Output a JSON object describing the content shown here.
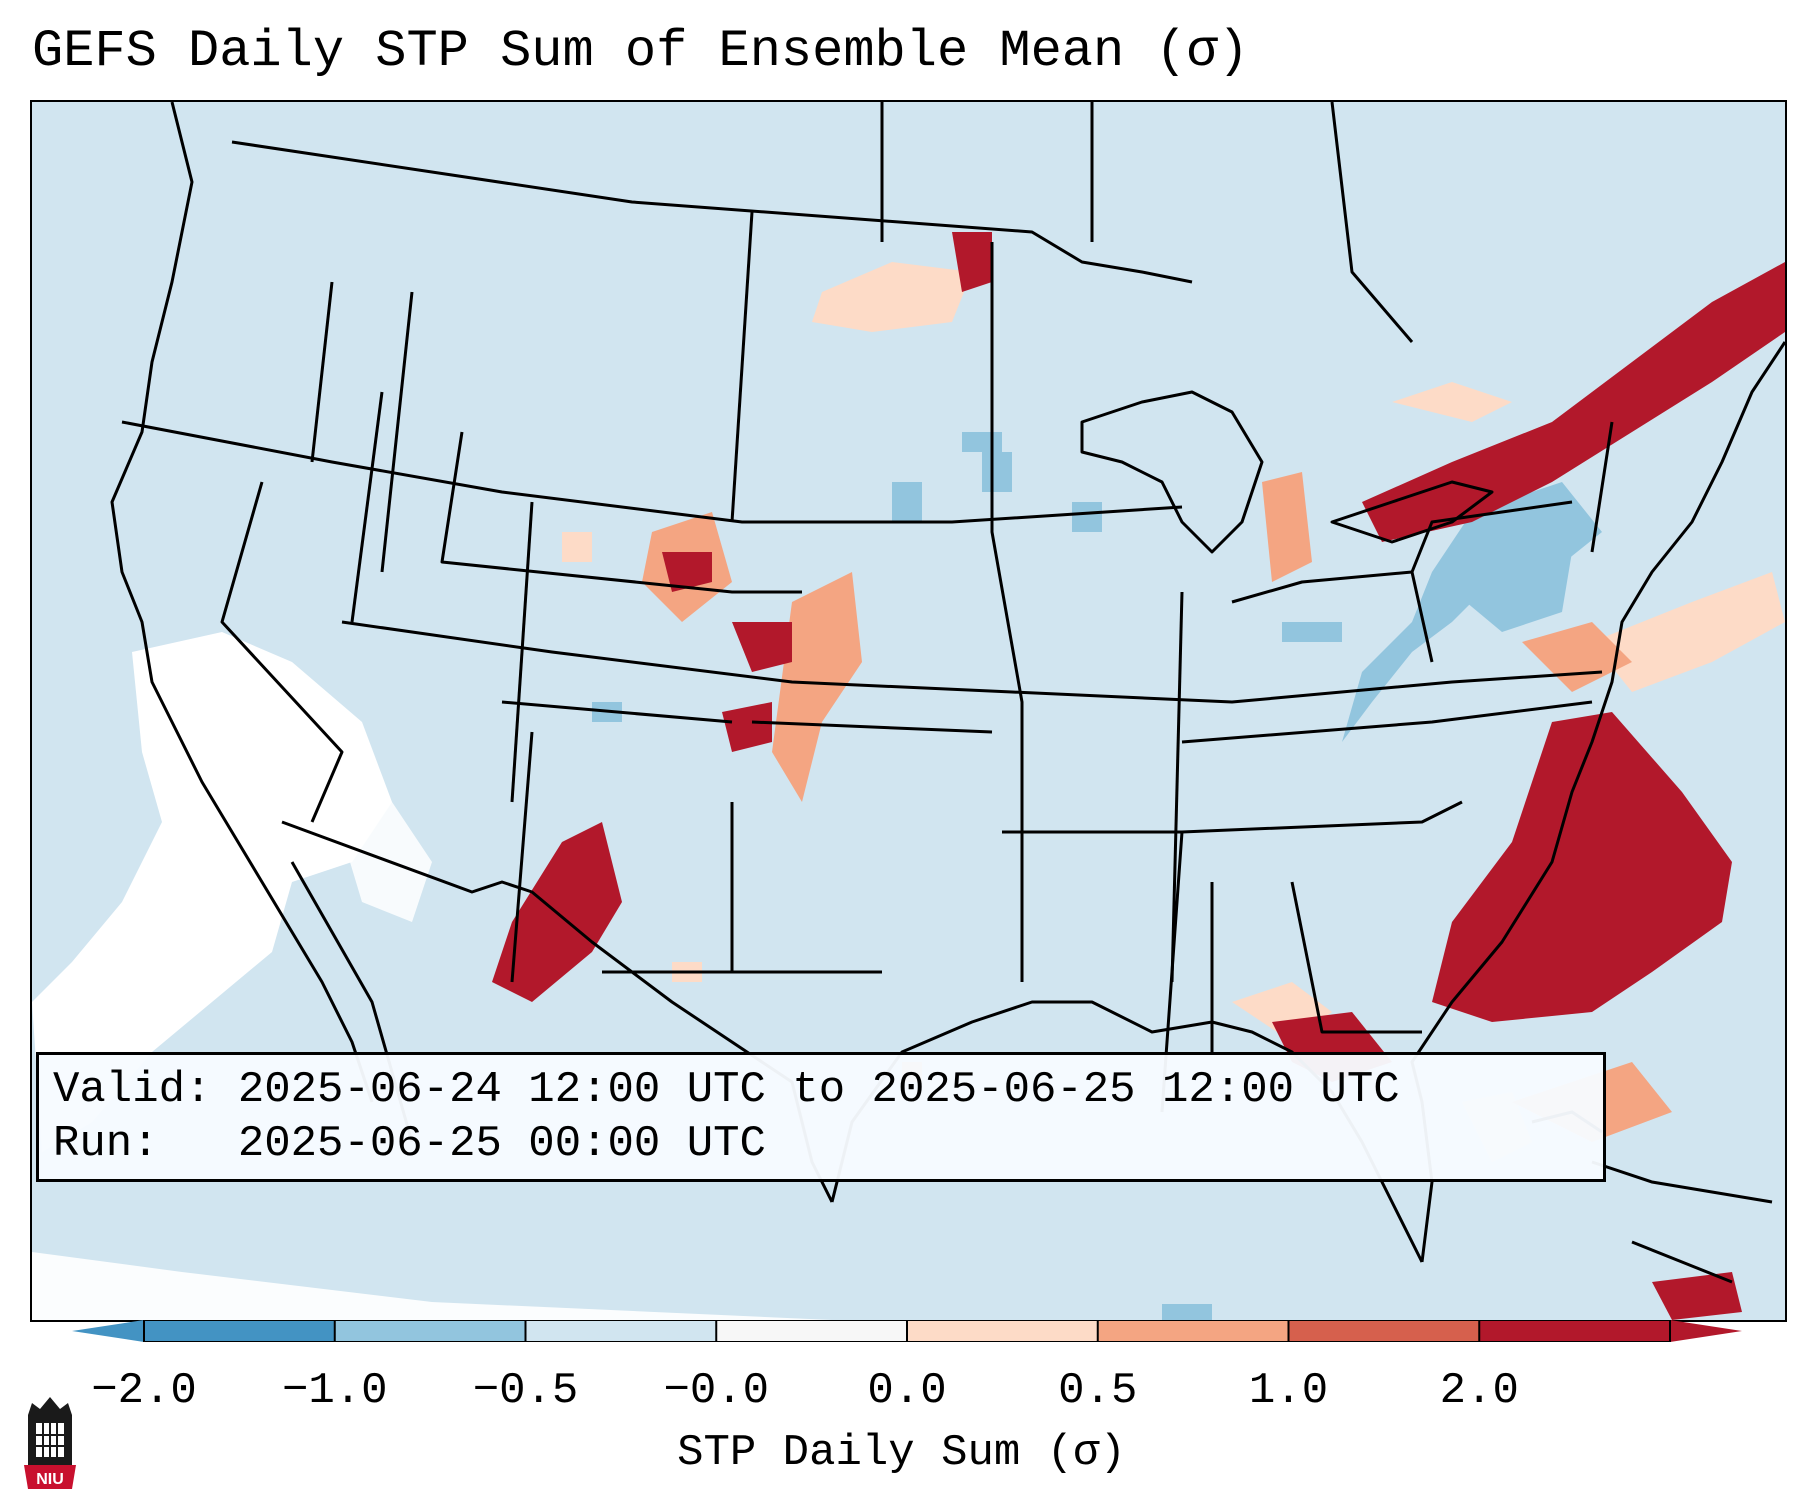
{
  "title": "GEFS Daily STP Sum of Ensemble Mean (σ)",
  "info": {
    "valid_label": "Valid:",
    "valid_value": "2025-06-24 12:00 UTC to 2025-06-25 12:00 UTC",
    "run_label": "Run:",
    "run_value": "2025-06-25 00:00 UTC"
  },
  "colorbar": {
    "label": "STP Daily Sum (σ)",
    "ticks": [
      "−2.0",
      "−1.0",
      "−0.5",
      "−0.0",
      "0.0",
      "0.5",
      "1.0",
      "2.0"
    ],
    "colors": [
      "#4393c3",
      "#92c5de",
      "#d1e5f0",
      "#f7f7f7",
      "#fddbc7",
      "#f4a582",
      "#d6604d",
      "#b2182b"
    ],
    "extend": "both"
  },
  "map": {
    "background_color": "#d1e5f0",
    "region": "Continental United States"
  },
  "logo": {
    "text": "NIU"
  }
}
